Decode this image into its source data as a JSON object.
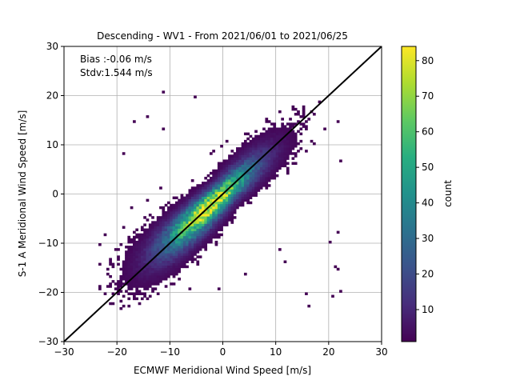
{
  "chart_data": {
    "type": "heatmap",
    "title": "Descending - WV1 - From 2021/06/01 to 2021/06/25",
    "xlabel": "ECMWF Meridional Wind Speed [m/s]",
    "ylabel": "S-1 A Meridional Wind Speed [m/s]",
    "xlim": [
      -30,
      30
    ],
    "ylim": [
      -30,
      30
    ],
    "xticks": [
      "−30",
      "−20",
      "−10",
      "0",
      "10",
      "20",
      "30"
    ],
    "yticks": [
      "−30",
      "−20",
      "−10",
      "0",
      "10",
      "20",
      "30"
    ],
    "grid": true,
    "annotations": {
      "bias": "Bias :-0.06 m/s",
      "stdv": "Stdv:1.544 m/s"
    },
    "reference_line": {
      "type": "identity",
      "color": "#000000"
    },
    "colorbar": {
      "label": "count",
      "range": [
        1,
        84
      ],
      "ticks": [
        "10",
        "20",
        "30",
        "40",
        "50",
        "60",
        "70",
        "80"
      ],
      "colormap": "viridis"
    },
    "scatter_summary": {
      "bin_size": 0.5,
      "peak_count": 84,
      "spread_sd": 1.544
    }
  }
}
